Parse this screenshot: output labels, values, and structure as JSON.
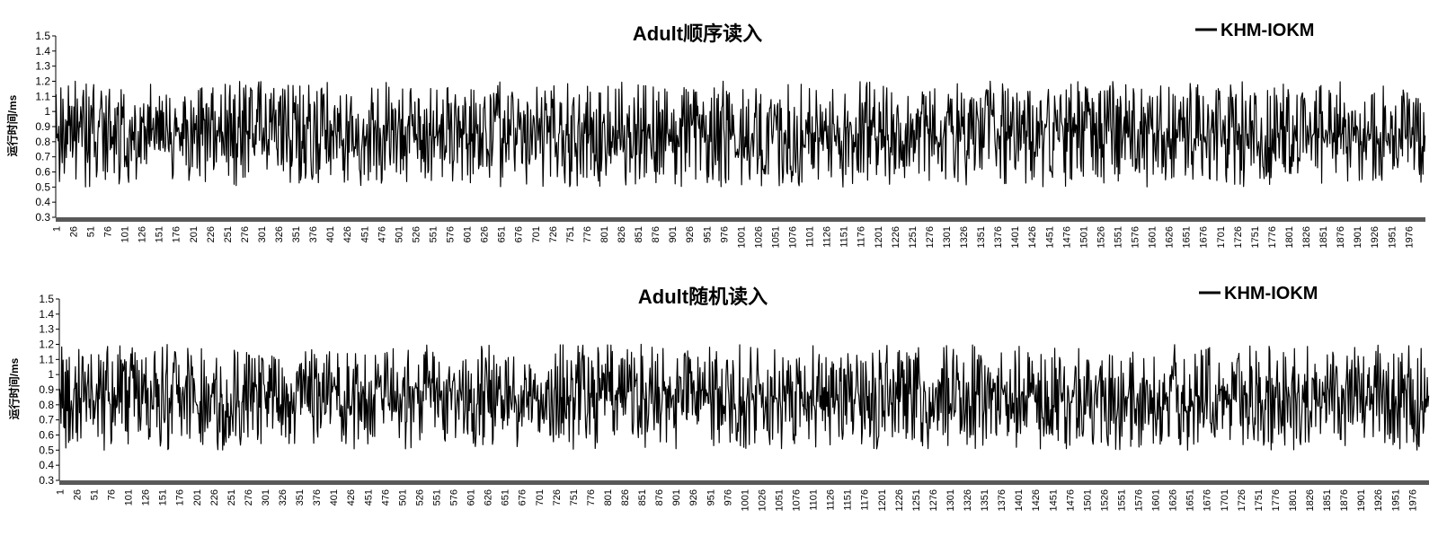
{
  "chart_data": [
    {
      "type": "line",
      "title": "Adult顺序读入",
      "ylabel": "运行时间/ms",
      "xlabel": "",
      "ylim": [
        0.3,
        1.5
      ],
      "yticks": [
        "0.3",
        "0.4",
        "0.5",
        "0.6",
        "0.7",
        "0.8",
        "0.9",
        "1",
        "1.1",
        "1.2",
        "1.3",
        "1.4",
        "1.5"
      ],
      "xticks": [
        "1",
        "26",
        "51",
        "76",
        "101",
        "126",
        "151",
        "176",
        "201",
        "226",
        "251",
        "276",
        "301",
        "326",
        "351",
        "376",
        "401",
        "426",
        "451",
        "476",
        "501",
        "526",
        "551",
        "576",
        "601",
        "626",
        "651",
        "676",
        "701",
        "726",
        "751",
        "776",
        "801",
        "826",
        "851",
        "876",
        "901",
        "926",
        "951",
        "976",
        "1001",
        "1026",
        "1051",
        "1076",
        "1101",
        "1126",
        "1151",
        "1176",
        "1201",
        "1226",
        "1251",
        "1276",
        "1301",
        "1326",
        "1351",
        "1376",
        "1401",
        "1426",
        "1451",
        "1476",
        "1501",
        "1526",
        "1551",
        "1576",
        "1601",
        "1626",
        "1651",
        "1676",
        "1701",
        "1726",
        "1751",
        "1776",
        "1801",
        "1826",
        "1851",
        "1876",
        "1901",
        "1926",
        "1951",
        "1976"
      ],
      "legend_position": "top-right",
      "series": [
        {
          "name": "KHM-IOKM",
          "color": "#000000",
          "n_points": 2000,
          "min": 0.5,
          "max": 1.2,
          "mean": 0.85,
          "seed": 11
        }
      ]
    },
    {
      "type": "line",
      "title": "Adult随机读入",
      "ylabel": "运行时间/ms",
      "xlabel": "",
      "ylim": [
        0.3,
        1.5
      ],
      "yticks": [
        "0.3",
        "0.4",
        "0.5",
        "0.6",
        "0.7",
        "0.8",
        "0.9",
        "1",
        "1.1",
        "1.2",
        "1.3",
        "1.4",
        "1.5"
      ],
      "xticks": [
        "1",
        "26",
        "51",
        "76",
        "101",
        "126",
        "151",
        "176",
        "201",
        "226",
        "251",
        "276",
        "301",
        "326",
        "351",
        "376",
        "401",
        "426",
        "451",
        "476",
        "501",
        "526",
        "551",
        "576",
        "601",
        "626",
        "651",
        "676",
        "701",
        "726",
        "751",
        "776",
        "801",
        "826",
        "851",
        "876",
        "901",
        "926",
        "951",
        "976",
        "1001",
        "1026",
        "1051",
        "1076",
        "1101",
        "1126",
        "1151",
        "1176",
        "1201",
        "1226",
        "1251",
        "1276",
        "1301",
        "1326",
        "1351",
        "1376",
        "1401",
        "1426",
        "1451",
        "1476",
        "1501",
        "1526",
        "1551",
        "1576",
        "1601",
        "1626",
        "1651",
        "1676",
        "1701",
        "1726",
        "1751",
        "1776",
        "1801",
        "1826",
        "1851",
        "1876",
        "1901",
        "1926",
        "1951",
        "1976"
      ],
      "legend_position": "top-right",
      "series": [
        {
          "name": "KHM-IOKM",
          "color": "#000000",
          "n_points": 2000,
          "min": 0.5,
          "max": 1.2,
          "mean": 0.85,
          "seed": 29
        }
      ]
    }
  ],
  "colors": {
    "axis_band": "#595959",
    "line": "#000000"
  }
}
